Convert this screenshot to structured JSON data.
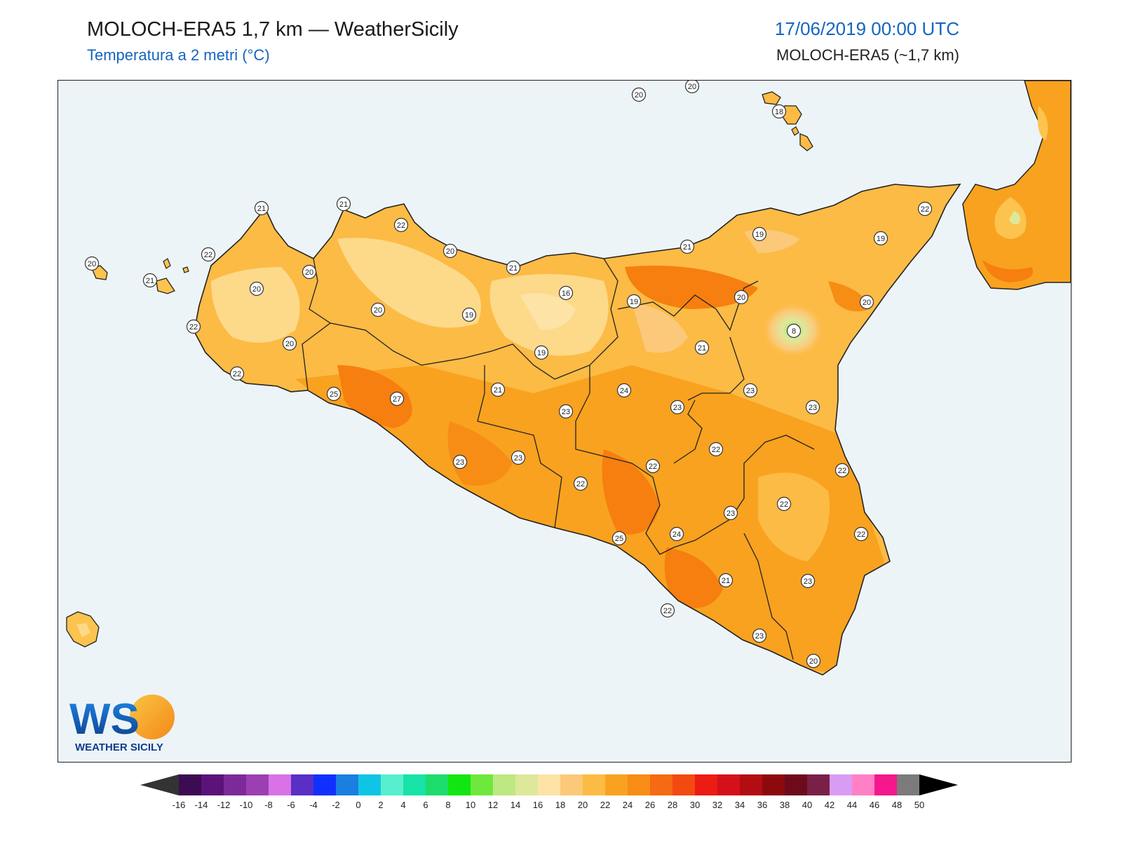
{
  "header": {
    "title": "MOLOCH-ERA5 1,7 km — WeatherSicily",
    "subtitle": "Temperatura a 2 metri (°C)",
    "datetime": "17/06/2019 00:00 UTC",
    "model": "MOLOCH-ERA5 (~1,7 km)"
  },
  "logo": {
    "letters": "WS",
    "name": "WEATHER SICILY"
  },
  "colors": {
    "sea": "#edf4f8",
    "land_warm": "#f9a21f",
    "land_mild": "#fcc34f",
    "land_cool": "#fdd98a",
    "land_hot": "#f67f0f",
    "etna_cool": "#9be26b",
    "title_blue": "#1565c0"
  },
  "legend": {
    "ticks": [
      "-16",
      "-14",
      "-12",
      "-10",
      "-8",
      "-6",
      "-4",
      "-2",
      "0",
      "2",
      "4",
      "6",
      "8",
      "10",
      "12",
      "14",
      "16",
      "18",
      "20",
      "22",
      "24",
      "26",
      "28",
      "30",
      "32",
      "34",
      "36",
      "38",
      "40",
      "42",
      "44",
      "46",
      "48",
      "50"
    ],
    "colors": [
      "#3d0b52",
      "#5b137a",
      "#7c2a99",
      "#9c3fb2",
      "#d872e6",
      "#5a2fc6",
      "#1030ff",
      "#1a7fe0",
      "#10c4e6",
      "#57efcd",
      "#17e3a7",
      "#1cdc6c",
      "#12e612",
      "#6ee83c",
      "#bde882",
      "#dde89a",
      "#fde3a6",
      "#fcc97a",
      "#fcbb45",
      "#f9a21f",
      "#f78d14",
      "#f56a12",
      "#f24a10",
      "#ec1b13",
      "#d4101a",
      "#b20d13",
      "#8c0a0c",
      "#6d0a1c",
      "#7a2046",
      "#d99cf5",
      "#ff80c6",
      "#f4188c",
      "#7b7b7b",
      "#3b3b3b"
    ]
  },
  "stations": [
    {
      "label": "20"
    },
    {
      "label": "20"
    },
    {
      "label": "18"
    },
    {
      "label": "21"
    },
    {
      "label": "21"
    },
    {
      "label": "22"
    },
    {
      "label": "22"
    },
    {
      "label": "20"
    },
    {
      "label": "20"
    },
    {
      "label": "21"
    },
    {
      "label": "21"
    },
    {
      "label": "19"
    },
    {
      "label": "19"
    },
    {
      "label": "22"
    },
    {
      "label": "20"
    },
    {
      "label": "21"
    },
    {
      "label": "20"
    },
    {
      "label": "16"
    },
    {
      "label": "19"
    },
    {
      "label": "20"
    },
    {
      "label": "20"
    },
    {
      "label": "19"
    },
    {
      "label": "22"
    },
    {
      "label": "8"
    },
    {
      "label": "20"
    },
    {
      "label": "21"
    },
    {
      "label": "19"
    },
    {
      "label": "20"
    },
    {
      "label": "22"
    },
    {
      "label": "24"
    },
    {
      "label": "23"
    },
    {
      "label": "21"
    },
    {
      "label": "25"
    },
    {
      "label": "27"
    },
    {
      "label": "23"
    },
    {
      "label": "23"
    },
    {
      "label": "22"
    },
    {
      "label": "23"
    },
    {
      "label": "22"
    },
    {
      "label": "23"
    },
    {
      "label": "23"
    },
    {
      "label": "22"
    },
    {
      "label": "22"
    },
    {
      "label": "23"
    },
    {
      "label": "25"
    },
    {
      "label": "24"
    },
    {
      "label": "22"
    },
    {
      "label": "21"
    },
    {
      "label": "23"
    },
    {
      "label": "22"
    },
    {
      "label": "23"
    },
    {
      "label": "22"
    },
    {
      "label": "20"
    }
  ]
}
